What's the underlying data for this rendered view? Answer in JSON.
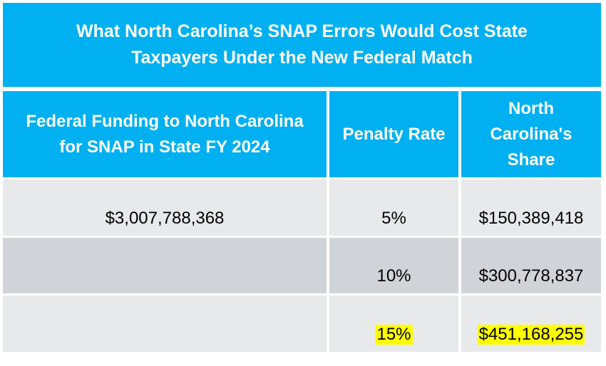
{
  "title": {
    "line1": "What North Carolina’s SNAP Errors Would Cost State",
    "line2": "Taxpayers Under the New Federal Match"
  },
  "table": {
    "headers": [
      {
        "line1": "Federal Funding to North Carolina",
        "line2": "for SNAP in State FY 2024"
      },
      {
        "line1": "Penalty Rate"
      },
      {
        "line1": "North",
        "line2": "Carolina's",
        "line3": "Share"
      }
    ],
    "federal_funding": "$3,007,788,368",
    "rows": [
      {
        "penalty_rate": "5%",
        "share": "$150,389,418",
        "highlighted": false
      },
      {
        "penalty_rate": "10%",
        "share": "$300,778,837",
        "highlighted": false
      },
      {
        "penalty_rate": "15%",
        "share": "$451,168,255",
        "highlighted": true
      }
    ]
  },
  "colors": {
    "header_bg": "#00B0F0",
    "header_text": "#FFFFFF",
    "row_light": "#E8E9EB",
    "row_dark": "#D0D3D8",
    "highlight": "#FFFF00"
  }
}
